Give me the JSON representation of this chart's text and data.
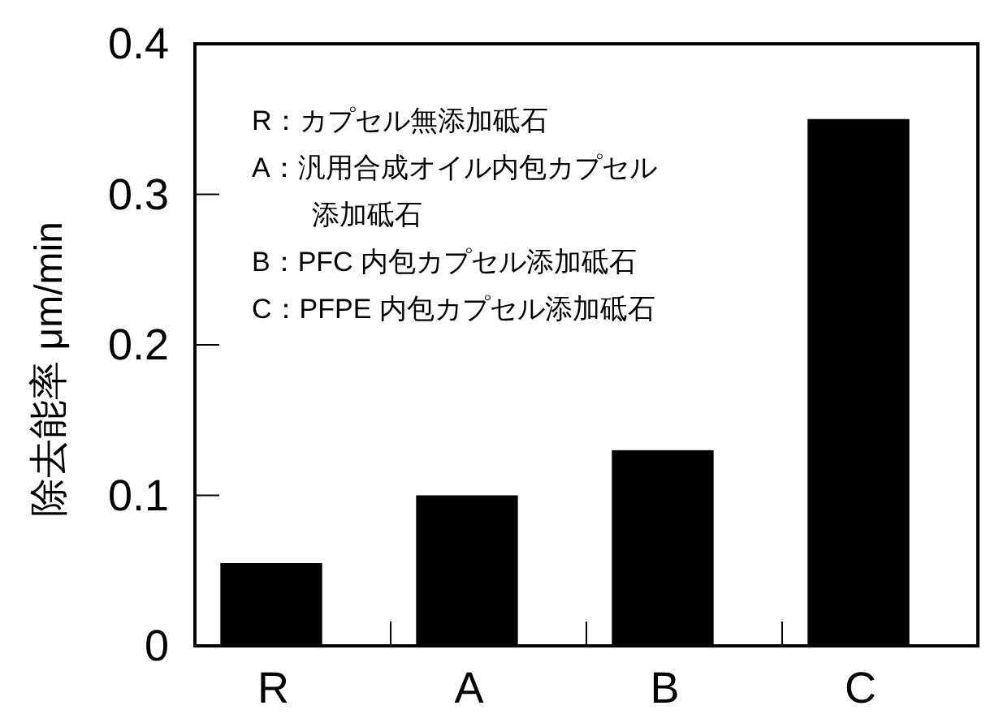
{
  "chart_data": {
    "type": "bar",
    "ylabel": "除去能率 μm/min",
    "categories": [
      "R",
      "A",
      "B",
      "C"
    ],
    "values": [
      0.055,
      0.1,
      0.13,
      0.35
    ],
    "color": "#000000",
    "ylim": [
      0,
      0.4
    ],
    "yticks": [
      0,
      0.1,
      0.2,
      0.3,
      0.4
    ],
    "grid": false,
    "annotations": [
      "R：カプセル無添加砥石",
      "A：汎用合成オイル内包カプセル添加砥石",
      "B：PFC 内包カプセル添加砥石",
      "C：PFPE 内包カプセル添加砥石"
    ]
  }
}
